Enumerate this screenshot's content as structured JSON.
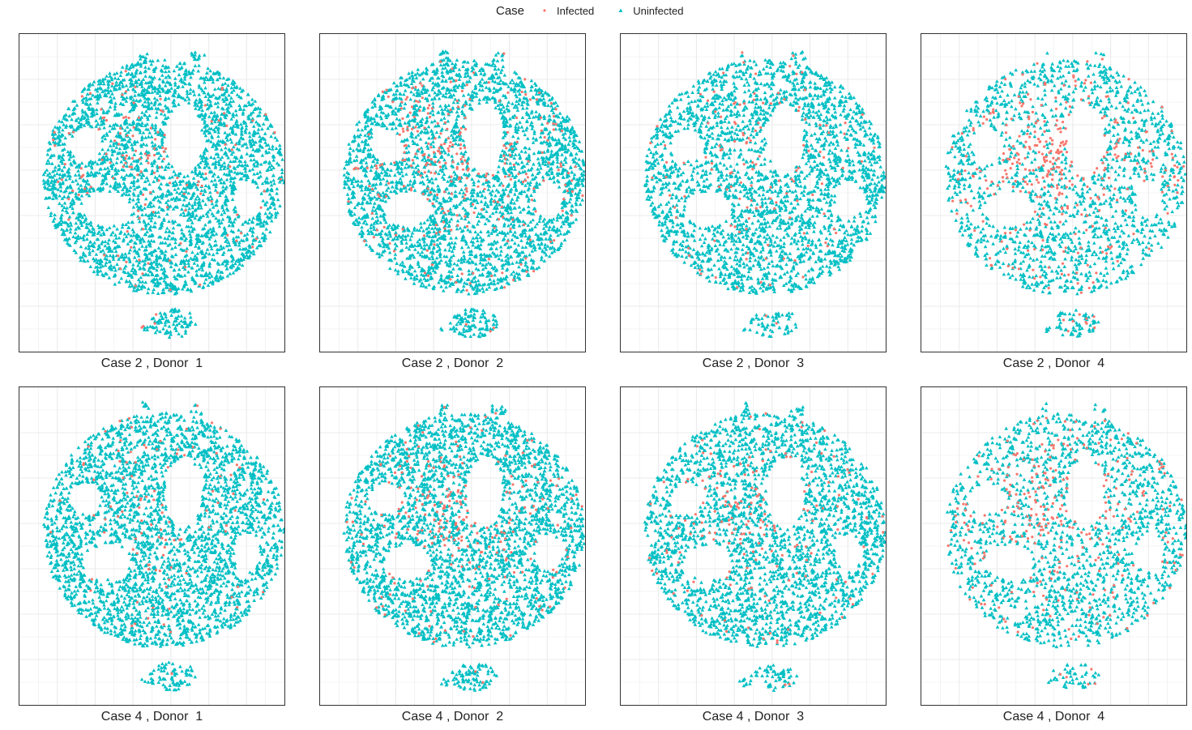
{
  "chart_data": {
    "type": "scatter",
    "legend": {
      "title": "Case",
      "placement": "top",
      "entries": [
        {
          "label": "Infected",
          "shape": "circle",
          "color": "#F8766D"
        },
        {
          "label": "Uninfected",
          "shape": "triangle",
          "color": "#00BFC4"
        }
      ]
    },
    "grid": true,
    "colors": {
      "infected": "#F8766D",
      "uninfected": "#00BFC4",
      "grid": "#ebebeb"
    },
    "panels": [
      {
        "label": "Case 2 , Donor  1",
        "density": 1.0,
        "infected_level": 0.06
      },
      {
        "label": "Case 2 , Donor  2",
        "density": 1.0,
        "infected_level": 0.12
      },
      {
        "label": "Case 2 , Donor  3",
        "density": 0.85,
        "infected_level": 0.07
      },
      {
        "label": "Case 2 , Donor  4",
        "density": 0.6,
        "infected_level": 0.22
      },
      {
        "label": "Case 4 , Donor  1",
        "density": 0.95,
        "infected_level": 0.05
      },
      {
        "label": "Case 4 , Donor  2",
        "density": 1.0,
        "infected_level": 0.1
      },
      {
        "label": "Case 4 , Donor  3",
        "density": 0.85,
        "infected_level": 0.08
      },
      {
        "label": "Case 4 , Donor  4",
        "density": 0.6,
        "infected_level": 0.18
      }
    ]
  }
}
